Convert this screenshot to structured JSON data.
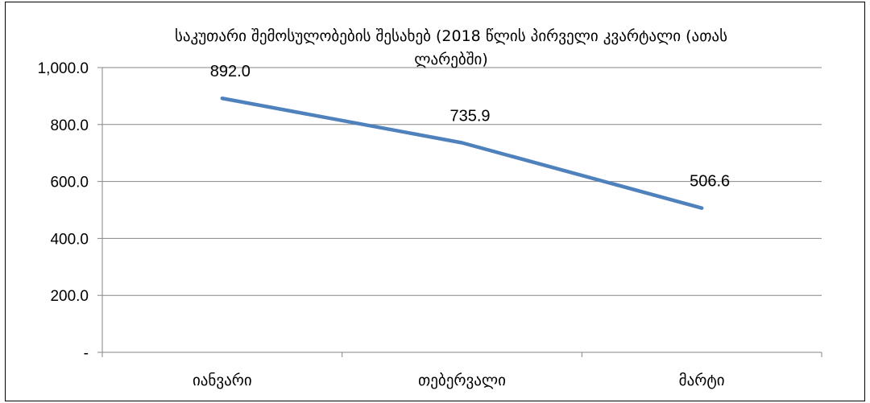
{
  "chart_data": {
    "type": "line",
    "title_lines": [
      "საკუთარი შემოსულობების შესახებ (2018 წლის  პირველი კვარტალი (ათას",
      "ლარებში)"
    ],
    "categories": [
      "იანვარი",
      "თებერვალი",
      "მარტი"
    ],
    "series": [
      {
        "values": [
          892.0,
          735.9,
          506.6
        ],
        "color": "#4F81BD"
      }
    ],
    "data_labels": [
      "892.0",
      "735.9",
      "506.6"
    ],
    "y_ticks": [
      {
        "value": 0,
        "label": "-"
      },
      {
        "value": 200,
        "label": "200.0"
      },
      {
        "value": 400,
        "label": "400.0"
      },
      {
        "value": 600,
        "label": "600.0"
      },
      {
        "value": 800,
        "label": "800.0"
      },
      {
        "value": 1000,
        "label": "1,000.0"
      }
    ],
    "ylim": [
      0,
      1000
    ],
    "grid": true,
    "legend": "none"
  }
}
